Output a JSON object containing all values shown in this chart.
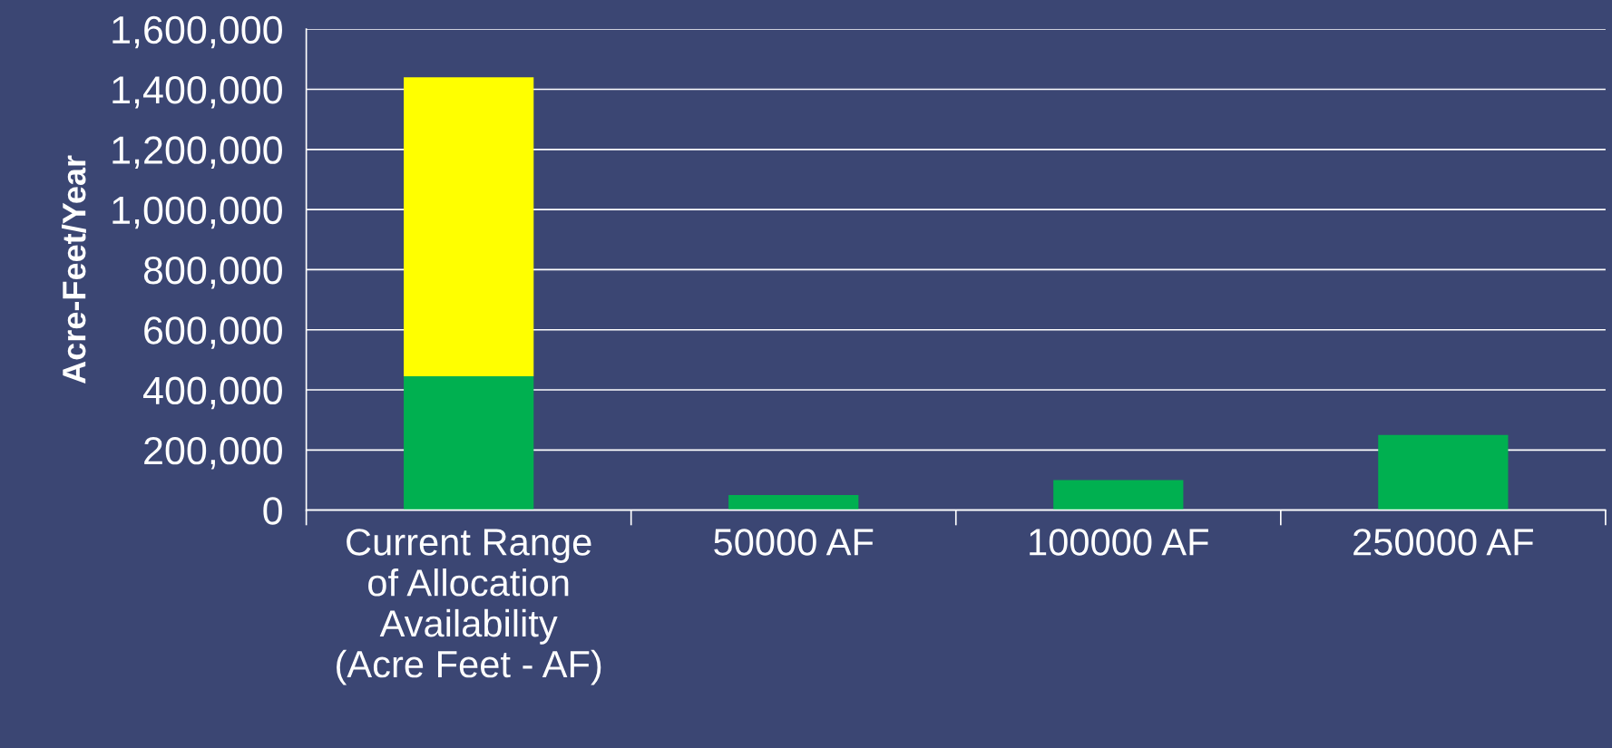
{
  "chart_data": {
    "type": "bar",
    "ylabel": "Acre-Feet/Year",
    "categories": [
      "Current Range\nof Allocation\nAvailability\n(Acre Feet - AF)",
      "50000 AF",
      "100000 AF",
      "250000 AF"
    ],
    "stacked": true,
    "series": [
      {
        "color": "#00b050",
        "values": [
          445000,
          50000,
          100000,
          250000
        ]
      },
      {
        "color": "#ffff00",
        "values": [
          995000,
          null,
          null,
          null
        ]
      }
    ],
    "ylim": [
      0,
      1600000
    ],
    "yticks": [
      {
        "value": 0,
        "label": "0"
      },
      {
        "value": 200000,
        "label": "200,000"
      },
      {
        "value": 400000,
        "label": "400,000"
      },
      {
        "value": 600000,
        "label": "600,000"
      },
      {
        "value": 800000,
        "label": "800,000"
      },
      {
        "value": 1000000,
        "label": "1,000,000"
      },
      {
        "value": 1200000,
        "label": "1,200,000"
      },
      {
        "value": 1400000,
        "label": "1,400,000"
      },
      {
        "value": 1600000,
        "label": "1,600,000"
      }
    ],
    "grid": "y"
  }
}
